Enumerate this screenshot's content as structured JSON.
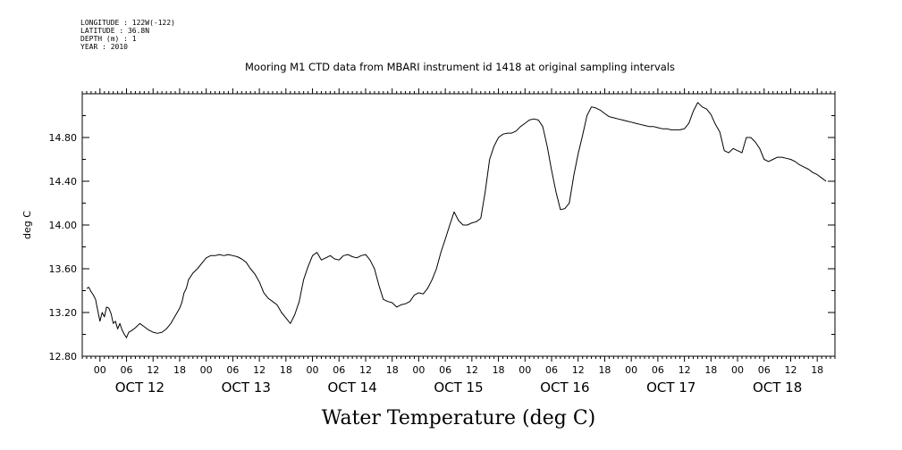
{
  "header": {
    "longitude": "LONGITUDE : 122W(-122)",
    "latitude": "LATITUDE : 36.8N",
    "depth": "DEPTH (m) : 1",
    "year": "YEAR : 2010"
  },
  "chart_data": {
    "type": "line",
    "title": "Mooring M1 CTD data from MBARI instrument id 1418 at original sampling intervals",
    "xlabel": "Water Temperature (deg C)",
    "ylabel": "deg C",
    "ylim": [
      12.8,
      15.2
    ],
    "yticks": [
      "12.80",
      "13.20",
      "13.60",
      "14.00",
      "14.40",
      "14.80"
    ],
    "hour_ticks": [
      "00",
      "06",
      "12",
      "18"
    ],
    "days": [
      "OCT 12",
      "OCT 13",
      "OCT 14",
      "OCT 15",
      "OCT 16",
      "OCT 17",
      "OCT 18"
    ],
    "xlim_hours": [
      -4,
      166
    ],
    "series": [
      {
        "x": [
          -3,
          -2.5,
          -2,
          -1.5,
          -1,
          -0.5,
          0,
          0.5,
          1,
          1.5,
          2,
          2.5,
          3,
          3.5,
          4,
          4.5,
          5,
          5.5,
          6,
          6.5,
          7,
          8,
          9,
          10,
          11,
          12,
          13,
          14,
          15,
          16,
          17,
          18,
          18.5,
          19,
          19.5,
          20,
          21,
          22,
          23,
          24,
          25,
          26,
          27,
          28,
          29,
          30,
          31,
          32,
          33,
          34,
          35,
          36,
          37,
          38,
          39,
          40,
          41,
          42,
          43,
          44,
          45,
          46,
          47,
          48,
          49,
          50,
          51,
          52,
          53,
          54,
          55,
          56,
          57,
          58,
          59,
          60,
          61,
          62,
          63,
          64,
          65,
          66,
          67,
          68,
          69,
          70,
          71,
          72,
          73,
          74,
          75,
          76,
          77,
          78,
          79,
          80,
          81,
          82,
          83,
          84,
          85,
          86,
          87,
          88,
          89,
          90,
          91,
          92,
          93,
          94,
          95,
          96,
          97,
          98,
          99,
          100,
          101,
          102,
          103,
          104,
          105,
          106,
          107,
          108,
          109,
          110,
          111,
          112,
          113,
          114,
          115,
          116,
          117,
          118,
          119,
          120,
          121,
          122,
          123,
          124,
          125,
          126,
          127,
          128,
          129,
          130,
          131,
          132,
          133,
          134,
          135,
          136,
          137,
          138,
          139,
          140,
          141,
          142,
          143,
          144,
          145,
          146,
          147,
          148,
          149,
          150,
          151,
          152,
          153,
          154,
          155,
          156,
          157,
          158,
          159,
          160,
          161,
          162,
          163,
          164
        ],
        "values": [
          13.42,
          13.43,
          13.39,
          13.36,
          13.32,
          13.22,
          13.12,
          13.2,
          13.16,
          13.25,
          13.24,
          13.19,
          13.1,
          13.12,
          13.05,
          13.1,
          13.04,
          13.0,
          12.97,
          13.02,
          13.03,
          13.06,
          13.1,
          13.07,
          13.04,
          13.02,
          13.01,
          13.02,
          13.05,
          13.1,
          13.17,
          13.24,
          13.29,
          13.38,
          13.42,
          13.5,
          13.56,
          13.6,
          13.65,
          13.7,
          13.72,
          13.72,
          13.73,
          13.72,
          13.73,
          13.72,
          13.71,
          13.69,
          13.66,
          13.6,
          13.55,
          13.48,
          13.38,
          13.33,
          13.3,
          13.27,
          13.2,
          13.15,
          13.1,
          13.18,
          13.3,
          13.5,
          13.62,
          13.72,
          13.75,
          13.68,
          13.7,
          13.72,
          13.69,
          13.68,
          13.72,
          13.73,
          13.71,
          13.7,
          13.72,
          13.73,
          13.68,
          13.6,
          13.45,
          13.32,
          13.3,
          13.29,
          13.25,
          13.27,
          13.28,
          13.3,
          13.36,
          13.38,
          13.37,
          13.42,
          13.5,
          13.6,
          13.75,
          13.87,
          14.0,
          14.12,
          14.04,
          14.0,
          14.0,
          14.02,
          14.03,
          14.06,
          14.3,
          14.6,
          14.72,
          14.8,
          14.83,
          14.84,
          14.84,
          14.86,
          14.9,
          14.93,
          14.96,
          14.97,
          14.96,
          14.9,
          14.72,
          14.5,
          14.3,
          14.14,
          14.15,
          14.2,
          14.45,
          14.65,
          14.82,
          15.0,
          15.08,
          15.07,
          15.05,
          15.02,
          14.99,
          14.98,
          14.97,
          14.96,
          14.95,
          14.94,
          14.93,
          14.92,
          14.91,
          14.9,
          14.9,
          14.89,
          14.88,
          14.88,
          14.87,
          14.87,
          14.87,
          14.88,
          14.93,
          15.04,
          15.12,
          15.08,
          15.06,
          15.01,
          14.92,
          14.85,
          14.68,
          14.66,
          14.7,
          14.68,
          14.66,
          14.8,
          14.8,
          14.76,
          14.7,
          14.6,
          14.58,
          14.6,
          14.62,
          14.62,
          14.61,
          14.6,
          14.58,
          14.55,
          14.53,
          14.51,
          14.48,
          14.46,
          14.43,
          14.4
        ]
      }
    ]
  }
}
